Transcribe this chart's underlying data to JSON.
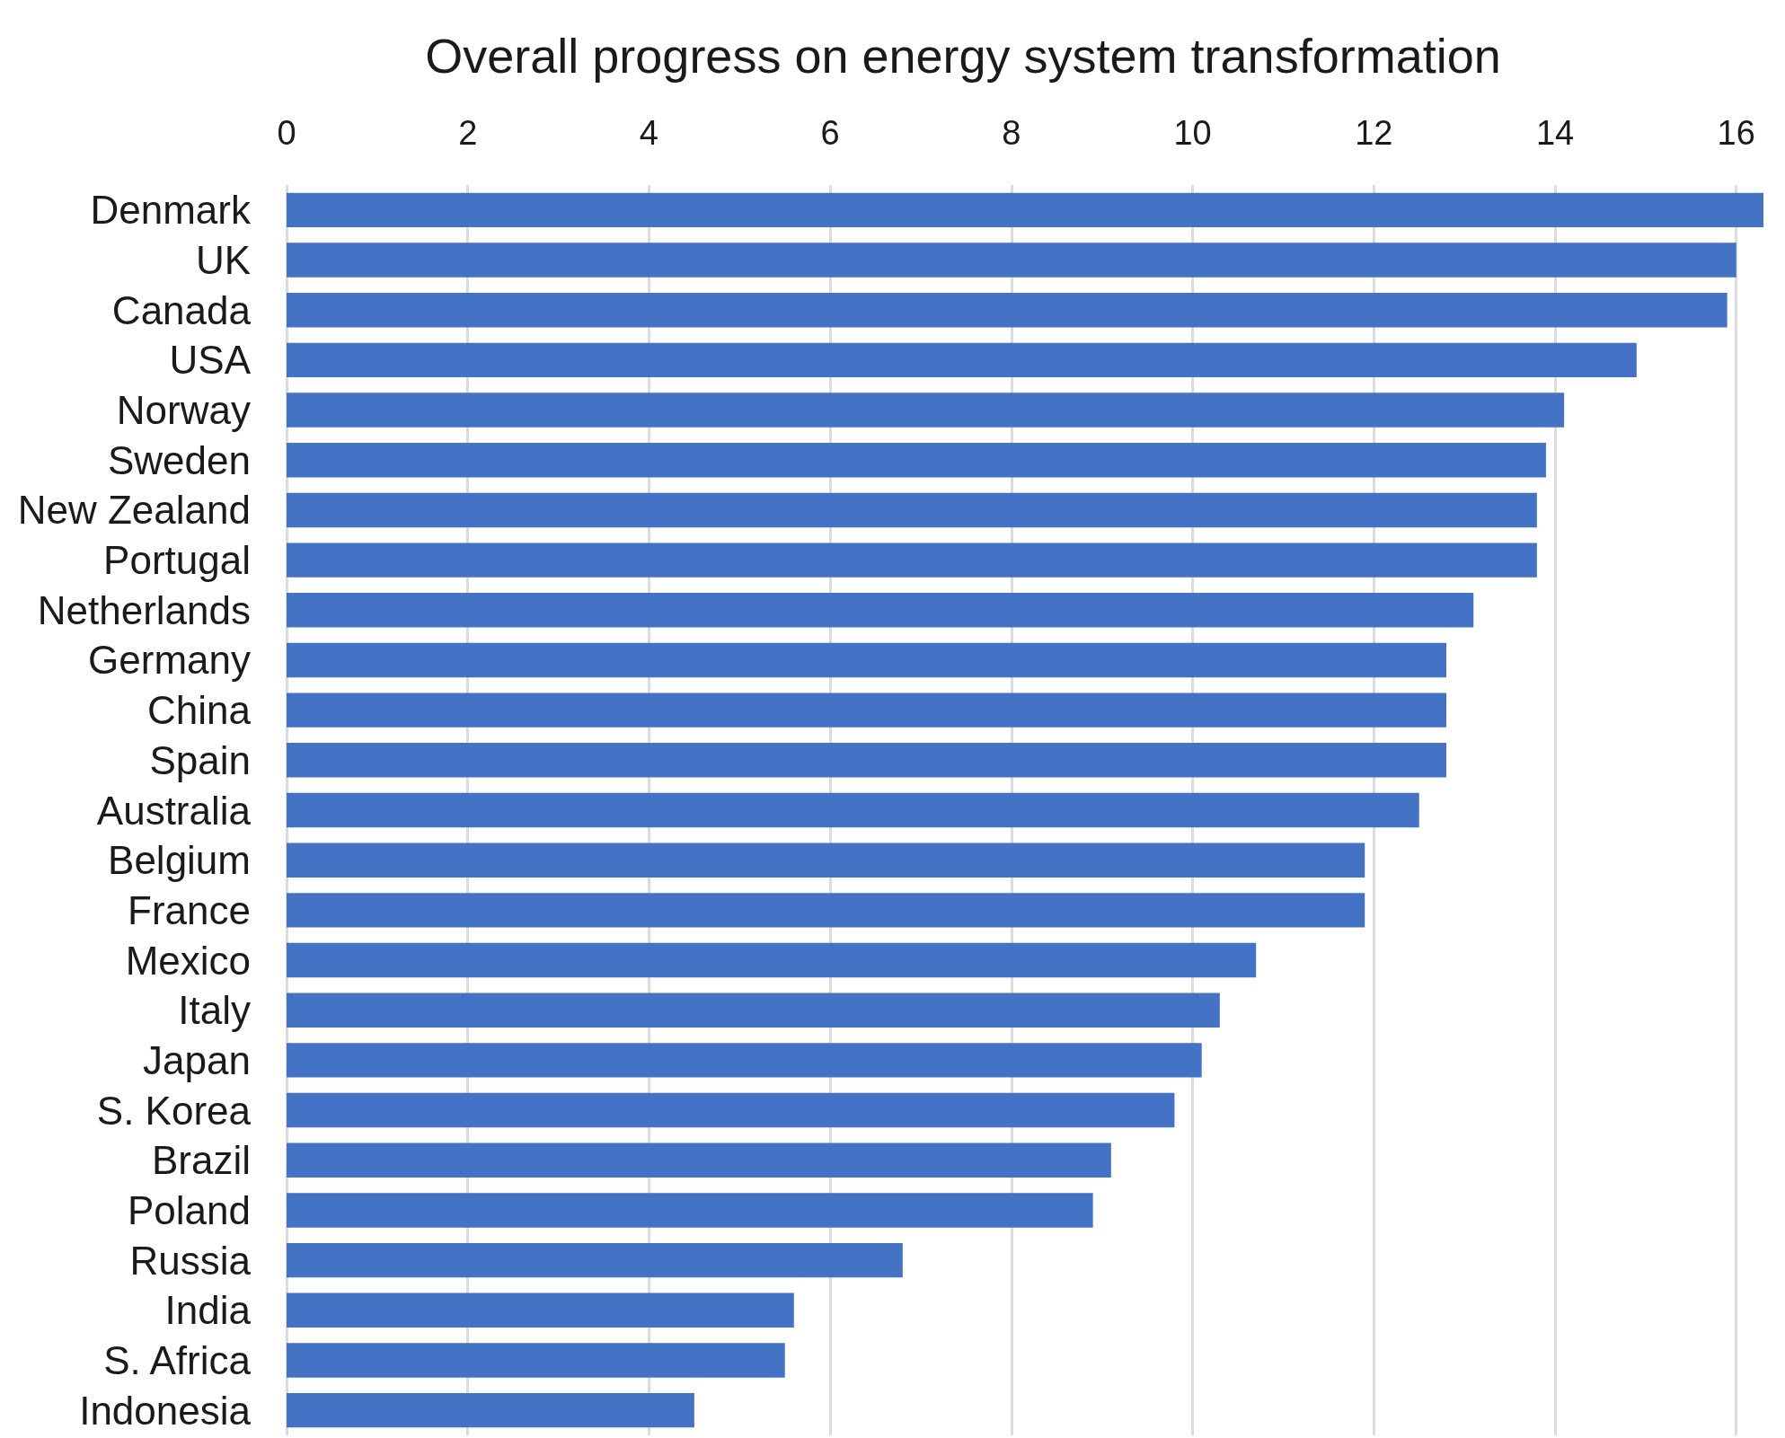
{
  "chart_data": {
    "type": "bar",
    "orientation": "horizontal",
    "title": "Overall progress on energy system transformation",
    "categories": [
      "Denmark",
      "UK",
      "Canada",
      "USA",
      "Norway",
      "Sweden",
      "New Zealand",
      "Portugal",
      "Netherlands",
      "Germany",
      "China",
      "Spain",
      "Australia",
      "Belgium",
      "France",
      "Mexico",
      "Italy",
      "Japan",
      "S. Korea",
      "Brazil",
      "Poland",
      "Russia",
      "India",
      "S. Africa",
      "Indonesia"
    ],
    "values": [
      16.3,
      16.0,
      15.9,
      14.9,
      14.1,
      13.9,
      13.8,
      13.8,
      13.1,
      12.8,
      12.8,
      12.8,
      12.5,
      11.9,
      11.9,
      10.7,
      10.3,
      10.1,
      9.8,
      9.1,
      8.9,
      6.8,
      5.6,
      5.5,
      4.5
    ],
    "color": "#4472c4",
    "xlim": [
      0,
      16.3
    ],
    "xticks": [
      0,
      2,
      4,
      6,
      8,
      10,
      12,
      14,
      16
    ],
    "grid": "x"
  }
}
